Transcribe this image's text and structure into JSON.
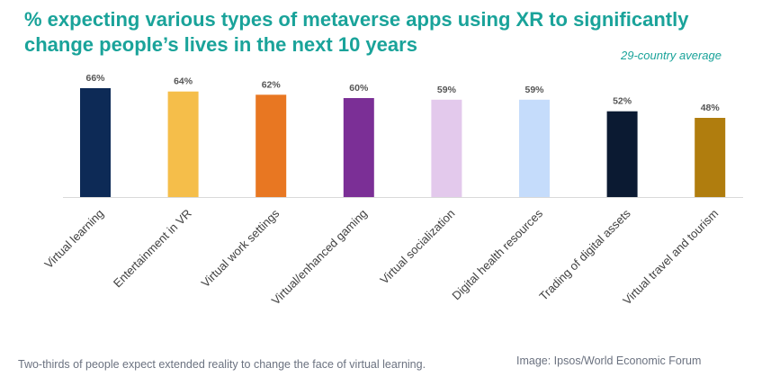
{
  "chart_data": {
    "type": "bar",
    "title": "% expecting various types of metaverse apps using XR to significantly change people’s lives in the next 10 years",
    "subtitle": "29-country average",
    "categories": [
      "Virtual learning",
      "Entertainment in VR",
      "Virtual work settings",
      "Virtual/enhanced gaming",
      "Virtual socialization",
      "Digital health resources",
      "Trading of digital assets",
      "Virtual travel and tourism"
    ],
    "values": [
      66,
      64,
      62,
      60,
      59,
      59,
      52,
      48
    ],
    "value_labels": [
      "66%",
      "64%",
      "62%",
      "60%",
      "59%",
      "59%",
      "52%",
      "48%"
    ],
    "colors": [
      "#0d2a56",
      "#f5be4a",
      "#e87722",
      "#7b2f96",
      "#e3c9ec",
      "#c5dcfb",
      "#0b1a32",
      "#b07d0e"
    ],
    "xlabel": "",
    "ylabel": "",
    "ylim": [
      0,
      66
    ],
    "grid": false
  },
  "caption": "Two-thirds of people expect extended reality to change the face of virtual learning.",
  "credit": "Image: Ipsos/World Economic Forum"
}
